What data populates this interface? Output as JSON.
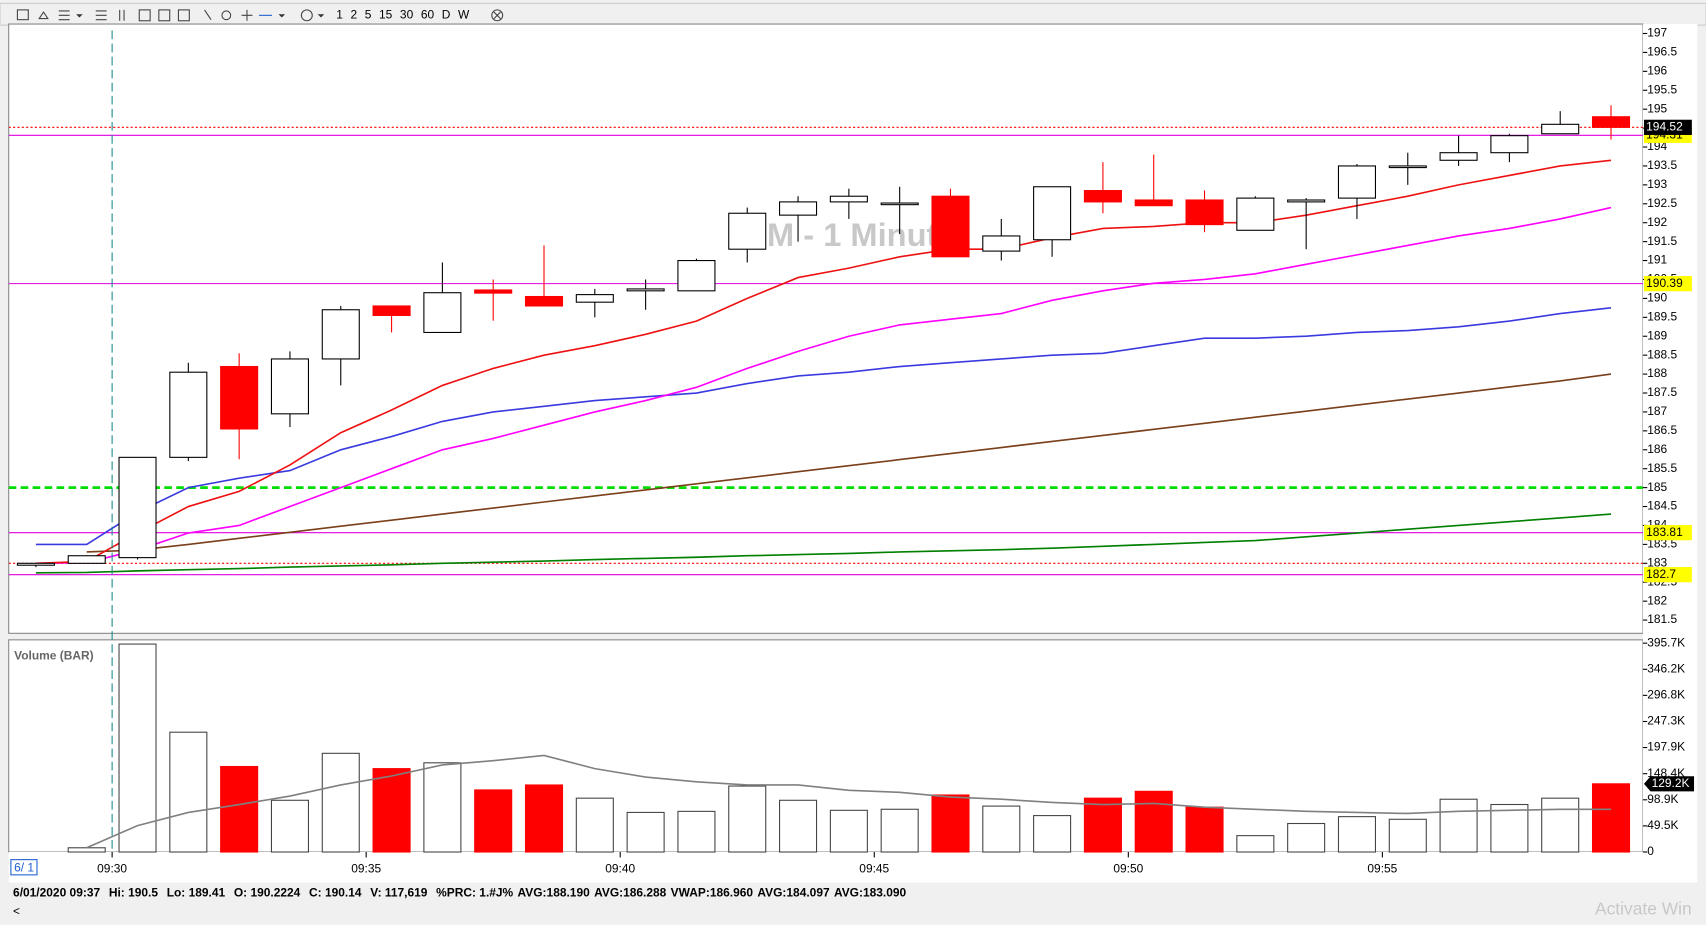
{
  "toolbar": {
    "intervals": [
      "1",
      "2",
      "5",
      "15",
      "30",
      "60",
      "D",
      "W"
    ]
  },
  "watermark": "M - 1 Minute",
  "chart_data": [
    {
      "type": "candlestick",
      "x": [
        "09:28",
        "09:29",
        "09:30",
        "09:31",
        "09:32",
        "09:33",
        "09:34",
        "09:35",
        "09:36",
        "09:37",
        "09:38",
        "09:39",
        "09:40",
        "09:41",
        "09:42",
        "09:43",
        "09:44",
        "09:45",
        "09:46",
        "09:47",
        "09:48",
        "09:49",
        "09:50",
        "09:51",
        "09:52",
        "09:53",
        "09:54",
        "09:55",
        "09:56",
        "09:57",
        "09:58",
        "09:59"
      ],
      "open": [
        182.95,
        183.0,
        183.15,
        185.8,
        188.2,
        186.95,
        188.4,
        189.8,
        189.1,
        190.2224,
        190.05,
        189.9,
        190.2,
        190.2,
        191.3,
        192.2,
        192.55,
        192.5,
        192.7,
        191.25,
        191.55,
        192.85,
        192.6,
        192.6,
        191.8,
        192.55,
        192.65,
        193.48,
        193.65,
        193.85,
        194.35,
        194.8
      ],
      "high": [
        183.0,
        183.2,
        185.8,
        188.3,
        188.55,
        188.6,
        189.8,
        189.8,
        190.95,
        190.5,
        191.4,
        190.25,
        190.5,
        191.05,
        192.4,
        192.7,
        192.9,
        192.95,
        192.9,
        192.1,
        192.95,
        193.6,
        193.8,
        192.85,
        192.7,
        192.65,
        193.55,
        193.85,
        194.3,
        194.35,
        194.95,
        195.1
      ],
      "low": [
        182.9,
        183.0,
        183.1,
        185.7,
        185.75,
        186.6,
        187.7,
        189.1,
        189.1,
        189.41,
        189.8,
        189.5,
        189.7,
        190.2,
        190.95,
        191.5,
        192.1,
        191.7,
        191.1,
        191.0,
        191.1,
        192.25,
        192.45,
        191.75,
        191.8,
        191.3,
        192.1,
        193.0,
        193.5,
        193.6,
        194.35,
        194.2
      ],
      "close": [
        183.0,
        183.2,
        185.8,
        188.05,
        186.55,
        188.4,
        189.7,
        189.55,
        190.15,
        190.14,
        189.8,
        190.1,
        190.25,
        191.0,
        192.25,
        192.55,
        192.7,
        192.52,
        191.1,
        191.65,
        192.95,
        192.55,
        192.45,
        191.95,
        192.65,
        192.6,
        193.5,
        193.5,
        193.85,
        194.3,
        194.6,
        194.52
      ],
      "up_color": "#ffffff",
      "down_color": "#ff0000",
      "series": [
        {
          "color": "#008000",
          "values": [
            182.75,
            182.76,
            182.8,
            182.83,
            182.86,
            182.9,
            182.93,
            182.96,
            183.0,
            183.03,
            183.06,
            183.1,
            183.13,
            183.16,
            183.2,
            183.23,
            183.26,
            183.3,
            183.33,
            183.36,
            183.4,
            183.45,
            183.5,
            183.55,
            183.6,
            183.7,
            183.8,
            183.9,
            184.0,
            184.1,
            184.2,
            184.3
          ]
        },
        {
          "color": "#7b3f1a",
          "values": [
            null,
            183.3,
            183.35,
            183.5,
            183.66,
            183.82,
            183.98,
            184.14,
            184.3,
            184.46,
            184.62,
            184.78,
            184.94,
            185.1,
            185.26,
            185.42,
            185.58,
            185.74,
            185.9,
            186.06,
            186.22,
            186.38,
            186.54,
            186.7,
            186.86,
            187.02,
            187.18,
            187.34,
            187.5,
            187.66,
            187.82,
            188.0
          ]
        },
        {
          "color": "#3a3ae0",
          "values": [
            183.5,
            183.5,
            184.35,
            185.0,
            185.25,
            185.45,
            186.0,
            186.35,
            186.75,
            187.0,
            187.15,
            187.3,
            187.4,
            187.5,
            187.75,
            187.95,
            188.05,
            188.2,
            188.3,
            188.4,
            188.5,
            188.55,
            188.75,
            188.95,
            188.95,
            189.0,
            189.1,
            189.15,
            189.25,
            189.4,
            189.6,
            189.75
          ]
        },
        {
          "color": "#ff00ff",
          "values": [
            183.0,
            183.02,
            183.35,
            183.8,
            184.0,
            184.5,
            185.0,
            185.5,
            186.0,
            186.3,
            186.65,
            187.0,
            187.3,
            187.65,
            188.15,
            188.6,
            189.0,
            189.3,
            189.45,
            189.6,
            189.95,
            190.2,
            190.4,
            190.5,
            190.65,
            190.9,
            191.15,
            191.4,
            191.65,
            191.85,
            192.1,
            192.4
          ]
        },
        {
          "color": "#ee1111",
          "values": [
            183.0,
            183.05,
            183.8,
            184.5,
            184.9,
            185.6,
            186.45,
            187.05,
            187.7,
            188.15,
            188.5,
            188.75,
            189.05,
            189.4,
            190.0,
            190.55,
            190.8,
            191.1,
            191.3,
            191.3,
            191.6,
            191.85,
            191.9,
            192.0,
            192.0,
            192.2,
            192.45,
            192.7,
            193.0,
            193.25,
            193.5,
            193.65
          ]
        }
      ],
      "levels": [
        {
          "value": 194.31,
          "color": "#e000e0"
        },
        {
          "value": 190.39,
          "color": "#e000e0"
        },
        {
          "value": 183.81,
          "color": "#e000e0"
        },
        {
          "value": 182.7,
          "color": "#e000e0"
        }
      ],
      "dashed_levels": [
        {
          "value": 185.0,
          "color": "#00dd00"
        }
      ],
      "dotted_levels": [
        {
          "value": 183.0,
          "color": "#ff0000"
        }
      ],
      "last_price": 194.52,
      "ylim": [
        181.15,
        197.25
      ],
      "yticks": [
        181.5,
        182,
        182.5,
        183,
        183.5,
        184,
        184.5,
        185,
        185.5,
        186,
        186.5,
        187,
        187.5,
        188,
        188.5,
        189,
        189.5,
        190,
        190.5,
        191,
        191.5,
        192,
        192.5,
        193,
        193.5,
        194,
        194.5,
        195,
        195.5,
        196,
        196.5,
        197
      ],
      "xticks": [
        "09:30",
        "09:35",
        "09:40",
        "09:45",
        "09:50",
        "09:55"
      ]
    },
    {
      "type": "bar",
      "title": "Volume (BAR)",
      "values": [
        null,
        8000,
        394000,
        227000,
        162000,
        98000,
        187000,
        158000,
        169000,
        117619,
        127000,
        102000,
        75000,
        77000,
        125000,
        98000,
        79000,
        81000,
        108000,
        87000,
        69000,
        102000,
        115000,
        85000,
        31000,
        54000,
        67000,
        62000,
        100000,
        90000,
        102000,
        129200
      ],
      "series": [
        {
          "color": "#808080",
          "values": [
            null,
            8000,
            50000,
            75000,
            90000,
            106000,
            127000,
            144000,
            165000,
            173000,
            183000,
            158000,
            142000,
            133000,
            127000,
            127000,
            117000,
            113000,
            104000,
            100000,
            94000,
            90000,
            92000,
            85000,
            81000,
            77000,
            75000,
            73000,
            77000,
            79000,
            81000,
            81000
          ]
        }
      ],
      "current": {
        "value": 129200,
        "label": "129.2K"
      },
      "ylim": [
        0,
        402000
      ],
      "yticks": [
        0,
        {
          "value": 49460,
          "label": "49.5K"
        },
        {
          "value": 98920,
          "label": "98.9K"
        },
        {
          "value": 148400,
          "label": "148.4K"
        },
        {
          "value": 197900,
          "label": "197.9K"
        },
        {
          "value": 247300,
          "label": "247.3K"
        },
        {
          "value": 296800,
          "label": "296.8K"
        },
        {
          "value": 346200,
          "label": "346.2K"
        },
        {
          "value": 395700,
          "label": "395.7K"
        }
      ]
    }
  ],
  "date_label": "6/ 1",
  "status": [
    "6/01/2020 09:37",
    "Hi: 190.5",
    "Lo: 189.41",
    "O: 190.2224",
    "C: 190.14",
    "V: 117,619",
    "%PRC: 1.#J%",
    "AVG:188.190",
    "AVG:186.288",
    "VWAP:186.960",
    "AVG:184.097",
    "AVG:183.090"
  ],
  "activation": "Activate Win"
}
